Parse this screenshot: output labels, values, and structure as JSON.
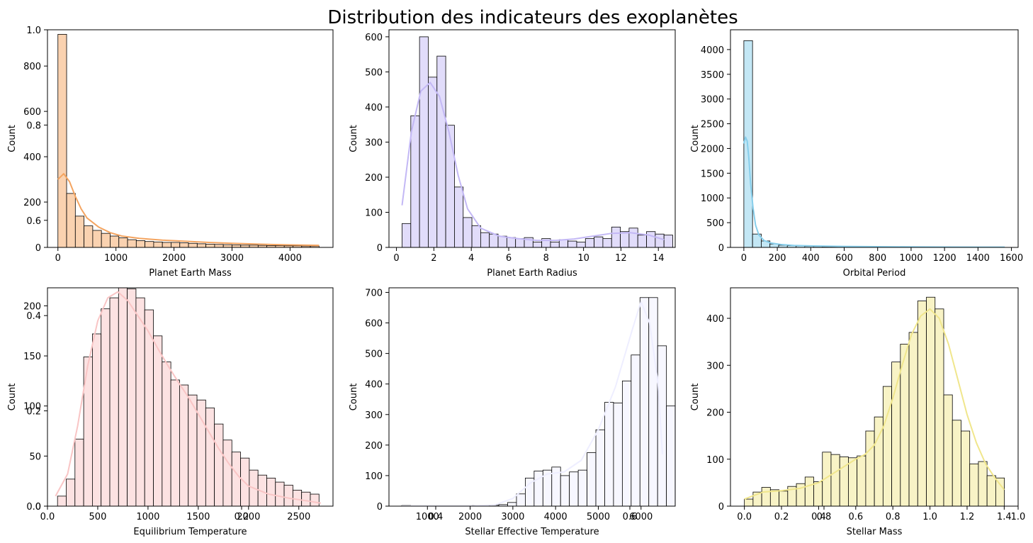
{
  "title": "Distribution des indicateurs des exoplanètes",
  "chart_data": [
    {
      "type": "bar",
      "subtype": "histogram",
      "xlabel": "Planet Earth Mass",
      "ylabel": "Count",
      "color": "#f4a460",
      "xlim": [
        -180,
        4740
      ],
      "ylim": [
        0,
        960
      ],
      "xticks": [
        0,
        1000,
        2000,
        3000,
        4000
      ],
      "yticks": [
        0,
        200,
        400,
        600,
        800
      ],
      "bins": {
        "start": 0,
        "width": 150
      },
      "values": [
        940,
        238,
        138,
        95,
        75,
        62,
        50,
        42,
        34,
        30,
        26,
        24,
        22,
        22,
        20,
        18,
        16,
        14,
        13,
        12,
        11,
        10,
        10,
        9,
        8,
        8,
        7,
        7,
        6,
        6
      ],
      "kde": {
        "x": [
          0,
          100,
          200,
          300,
          400,
          500,
          700,
          900,
          1100,
          1400,
          1800,
          2200,
          2600,
          3000,
          3500,
          4000,
          4500
        ],
        "y": [
          300,
          325,
          290,
          225,
          170,
          130,
          90,
          65,
          50,
          40,
          32,
          27,
          22,
          18,
          14,
          11,
          9
        ]
      }
    },
    {
      "type": "bar",
      "subtype": "histogram",
      "xlabel": "Planet Earth Radius",
      "ylabel": "Count",
      "color": "#c3b8f5",
      "xlim": [
        -0.4,
        14.9
      ],
      "ylim": [
        0,
        620
      ],
      "xticks": [
        0,
        2,
        4,
        6,
        8,
        10,
        12,
        14
      ],
      "yticks": [
        0,
        100,
        200,
        300,
        400,
        500,
        600
      ],
      "bins": {
        "start": 0.3,
        "width": 0.4667
      },
      "values": [
        68,
        375,
        600,
        485,
        545,
        348,
        172,
        85,
        62,
        42,
        38,
        32,
        28,
        25,
        28,
        15,
        25,
        15,
        22,
        18,
        15,
        25,
        30,
        25,
        58,
        45,
        55,
        35,
        45,
        38,
        35
      ],
      "kde": {
        "x": [
          0.3,
          0.8,
          1.3,
          1.8,
          2.3,
          2.8,
          3.3,
          3.8,
          4.5,
          5.5,
          6.5,
          7.5,
          8.5,
          9.5,
          10.5,
          11.5,
          12.5,
          13.5,
          14.3
        ],
        "y": [
          120,
          330,
          445,
          470,
          430,
          330,
          205,
          110,
          55,
          32,
          25,
          20,
          20,
          24,
          32,
          40,
          42,
          35,
          22
        ]
      }
    },
    {
      "type": "bar",
      "subtype": "histogram",
      "xlabel": "Orbital Period",
      "ylabel": "Count",
      "color": "#87ceeb",
      "xlim": [
        -80,
        1640
      ],
      "ylim": [
        0,
        4400
      ],
      "xticks": [
        0,
        200,
        400,
        600,
        800,
        1000,
        1200,
        1400,
        1600
      ],
      "yticks": [
        0,
        500,
        1000,
        1500,
        2000,
        2500,
        3000,
        3500,
        4000
      ],
      "bins": {
        "start": 0,
        "width": 52
      },
      "values": [
        4180,
        270,
        130,
        70,
        45,
        35,
        28,
        22,
        18,
        15,
        12,
        10,
        9,
        8,
        7,
        6,
        5,
        5,
        4,
        4,
        3,
        3,
        3,
        2,
        2,
        2,
        2,
        2,
        1,
        1
      ],
      "kde": {
        "x": [
          0,
          10,
          20,
          30,
          40,
          55,
          70,
          90,
          120,
          160,
          220,
          300,
          400,
          600,
          800,
          1000,
          1200,
          1400,
          1560
        ],
        "y": [
          2100,
          2230,
          2150,
          1800,
          1300,
          800,
          450,
          250,
          140,
          90,
          60,
          40,
          30,
          20,
          15,
          10,
          8,
          6,
          5
        ]
      }
    },
    {
      "type": "bar",
      "subtype": "histogram",
      "xlabel": "Equilibrium Temperature",
      "ylabel": "Count",
      "color": "#f9c5c5",
      "xlim": [
        0,
        2840
      ],
      "ylim": [
        0,
        218
      ],
      "xticks": [
        500,
        1000,
        1500,
        2000,
        2500
      ],
      "yticks": [
        0,
        50,
        100,
        150,
        200
      ],
      "bins": {
        "start": 100,
        "width": 86.7
      },
      "values": [
        10,
        27,
        67,
        149,
        172,
        197,
        208,
        218,
        217,
        208,
        196,
        170,
        144,
        126,
        121,
        111,
        106,
        98,
        82,
        66,
        54,
        48,
        36,
        31,
        28,
        24,
        21,
        16,
        14,
        12
      ],
      "kde": {
        "x": [
          80,
          200,
          300,
          400,
          500,
          600,
          700,
          800,
          900,
          1000,
          1100,
          1200,
          1300,
          1400,
          1500,
          1600,
          1700,
          1800,
          1900,
          2000,
          2200,
          2400,
          2600,
          2720
        ],
        "y": [
          10,
          32,
          80,
          140,
          185,
          208,
          214,
          205,
          190,
          175,
          157,
          140,
          124,
          109,
          92,
          75,
          58,
          43,
          30,
          20,
          12,
          8,
          5,
          3
        ]
      }
    },
    {
      "type": "bar",
      "subtype": "histogram",
      "xlabel": "Stellar Effective Temperature",
      "ylabel": "Count",
      "color": "#eeeeff",
      "xlim": [
        100,
        6800
      ],
      "ylim": [
        0,
        715
      ],
      "xticks": [
        1000,
        2000,
        3000,
        4000,
        5000,
        6000
      ],
      "yticks": [
        0,
        100,
        200,
        300,
        400,
        500,
        600,
        700
      ],
      "bins": {
        "start": 400,
        "width": 206.5
      },
      "values": [
        2,
        1,
        1,
        1,
        1,
        1,
        1,
        1,
        2,
        2,
        3,
        5,
        12,
        40,
        92,
        115,
        118,
        128,
        100,
        112,
        118,
        175,
        250,
        340,
        338,
        410,
        495,
        683,
        683,
        525,
        328
      ],
      "kde": {
        "x": [
          400,
          1000,
          2000,
          2600,
          3000,
          3400,
          3800,
          4200,
          4600,
          5000,
          5400,
          5800,
          6000,
          6200,
          6400,
          6500
        ],
        "y": [
          0,
          0,
          0,
          5,
          25,
          75,
          105,
          112,
          150,
          250,
          390,
          580,
          670,
          600,
          400,
          170
        ]
      }
    },
    {
      "type": "bar",
      "subtype": "histogram",
      "xlabel": "Stellar Mass",
      "ylabel": "Count",
      "color": "#f0e68c",
      "xlim": [
        -0.075,
        1.475
      ],
      "ylim": [
        0,
        465
      ],
      "xticks": [
        0.0,
        0.2,
        0.4,
        0.6,
        0.8,
        1.0,
        1.2,
        1.4
      ],
      "yticks": [
        0,
        100,
        200,
        300,
        400
      ],
      "bins": {
        "start": 0.0,
        "width": 0.0467
      },
      "values": [
        15,
        30,
        40,
        35,
        32,
        42,
        48,
        62,
        52,
        115,
        110,
        105,
        103,
        107,
        160,
        190,
        255,
        307,
        345,
        370,
        437,
        445,
        420,
        237,
        183,
        160,
        90,
        95,
        65,
        60
      ],
      "kde": {
        "x": [
          0.0,
          0.1,
          0.2,
          0.3,
          0.4,
          0.5,
          0.6,
          0.65,
          0.7,
          0.75,
          0.8,
          0.85,
          0.9,
          0.95,
          1.0,
          1.05,
          1.1,
          1.15,
          1.2,
          1.25,
          1.3,
          1.35,
          1.4
        ],
        "y": [
          15,
          30,
          33,
          38,
          50,
          75,
          100,
          110,
          130,
          170,
          230,
          300,
          365,
          405,
          420,
          400,
          345,
          270,
          195,
          135,
          90,
          60,
          35
        ]
      }
    }
  ],
  "ghost_axes": {
    "xticks": [
      "0.0",
      "0.2",
      "0.4",
      "0.6",
      "0.8",
      "1.0"
    ],
    "yticks": [
      "0.0",
      "0.2",
      "0.4",
      "0.6",
      "0.8",
      "1.0"
    ]
  }
}
